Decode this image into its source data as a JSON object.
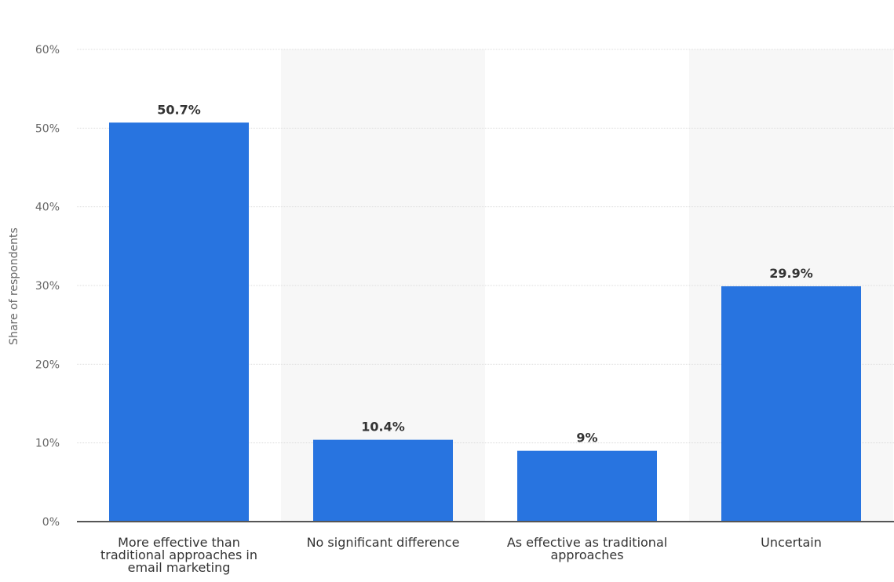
{
  "chart_data": {
    "type": "bar",
    "title": "",
    "xlabel": "",
    "ylabel": "Share of respondents",
    "categories": [
      "More effective than traditional approaches in email marketing",
      "No significant difference",
      "As effective as traditional approaches",
      "Uncertain"
    ],
    "category_label_lines": [
      [
        "More effective than",
        "traditional approaches in",
        "email marketing"
      ],
      [
        "No significant difference"
      ],
      [
        "As effective as traditional",
        "approaches"
      ],
      [
        "Uncertain"
      ]
    ],
    "values": [
      50.7,
      10.4,
      9,
      29.9
    ],
    "data_labels": [
      "50.7%",
      "10.4%",
      "9%",
      "29.9%"
    ],
    "ylim": [
      0,
      60
    ],
    "y_ticks": [
      0,
      10,
      20,
      30,
      40,
      50,
      60
    ],
    "y_tick_labels": [
      "0%",
      "10%",
      "20%",
      "30%",
      "40%",
      "50%",
      "60%"
    ],
    "grid": true,
    "legend": "none",
    "colors": {
      "bar": "#2874e0",
      "band": "#f7f7f7",
      "grid": "#dcdcdc",
      "axis": "#555555"
    }
  }
}
